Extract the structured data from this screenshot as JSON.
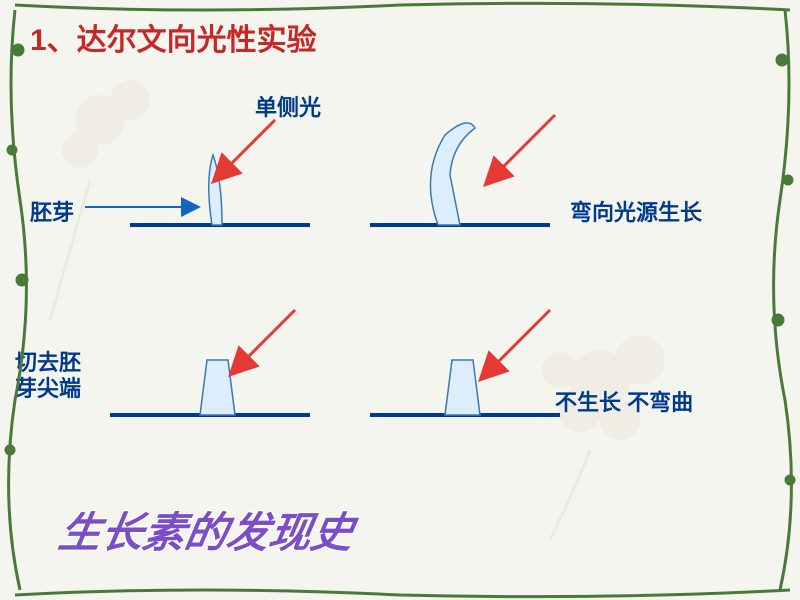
{
  "title": "1、达尔文向光性实验",
  "labels": {
    "light": "单侧光",
    "coleoptile": "胚芽",
    "bend": "弯向光源生长",
    "tipRemoved": "切去胚芽尖端",
    "noGrowBend": "不生长  不弯曲"
  },
  "footer": "生长素的发现史",
  "colors": {
    "title": "#c62828",
    "label": "#003a8c",
    "ground": "#003a8c",
    "arrowRed": "#e53935",
    "arrowBlue": "#1565c0",
    "shapeFill": "#dceefb",
    "shapeStroke": "#3a78b5",
    "borderVine": "#4a7a3a",
    "footer": "#7b4ec8",
    "background": "#f5f5f0"
  },
  "layout": {
    "groundY1": 225,
    "groundY2": 415,
    "col1X": 130,
    "col2X": 390,
    "groundLen": 180
  }
}
